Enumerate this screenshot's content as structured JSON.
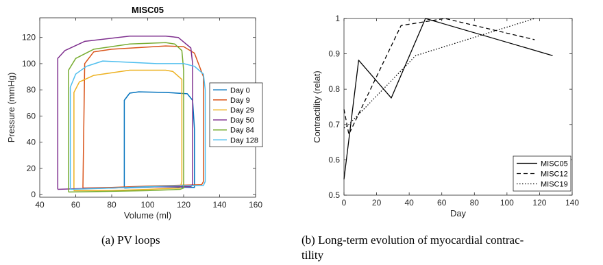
{
  "captions": {
    "a": "(a) PV loops",
    "b": "(b) Long-term evolution of myocardial contrac-",
    "b2": "tility"
  },
  "chart_data": [
    {
      "type": "line",
      "title": "MISC05",
      "xlabel": "Volume (ml)",
      "ylabel": "Pressure (mmHg)",
      "xlim": [
        40,
        160
      ],
      "ylim": [
        -2,
        135
      ],
      "xticks": [
        40,
        60,
        80,
        100,
        120,
        140,
        160
      ],
      "yticks": [
        0,
        20,
        40,
        60,
        80,
        100,
        120
      ],
      "legend_position": "right",
      "series": [
        {
          "name": "Day 0",
          "color": "#0072BD",
          "points": [
            [
              87,
              5
            ],
            [
              87,
              72
            ],
            [
              90,
              77.5
            ],
            [
              95,
              78.5
            ],
            [
              110,
              78
            ],
            [
              122,
              77
            ],
            [
              125,
              72
            ],
            [
              126,
              50
            ],
            [
              126,
              10
            ],
            [
              126,
              5.5
            ],
            [
              105,
              6
            ],
            [
              87,
              5
            ]
          ]
        },
        {
          "name": "Day 9",
          "color": "#D95319",
          "points": [
            [
              64,
              5
            ],
            [
              65,
              100
            ],
            [
              70,
              109
            ],
            [
              80,
              111
            ],
            [
              110,
              113.5
            ],
            [
              120,
              113
            ],
            [
              126,
              108
            ],
            [
              131,
              90
            ],
            [
              131,
              10
            ],
            [
              130,
              7.5
            ],
            [
              100,
              6.5
            ],
            [
              80,
              5.5
            ],
            [
              64,
              5
            ]
          ]
        },
        {
          "name": "Day 29",
          "color": "#EDB120",
          "points": [
            [
              59,
              3
            ],
            [
              59,
              78
            ],
            [
              62,
              86
            ],
            [
              70,
              91
            ],
            [
              90,
              95
            ],
            [
              110,
              95
            ],
            [
              114,
              94
            ],
            [
              119,
              88
            ],
            [
              119,
              10
            ],
            [
              118,
              5
            ],
            [
              100,
              4
            ],
            [
              80,
              3
            ],
            [
              59,
              3
            ]
          ]
        },
        {
          "name": "Day 50",
          "color": "#7E2F8E",
          "points": [
            [
              50,
              4
            ],
            [
              50,
              104
            ],
            [
              54,
              110
            ],
            [
              65,
              117
            ],
            [
              90,
              121
            ],
            [
              110,
              121
            ],
            [
              117,
              120
            ],
            [
              124,
              112
            ],
            [
              125,
              100
            ],
            [
              125,
              8
            ],
            [
              124,
              6
            ],
            [
              100,
              6
            ],
            [
              80,
              5
            ],
            [
              60,
              4.5
            ],
            [
              50,
              4
            ]
          ]
        },
        {
          "name": "Day 84",
          "color": "#77AC30",
          "points": [
            [
              56,
              2
            ],
            [
              56,
              95
            ],
            [
              60,
              104
            ],
            [
              70,
              111
            ],
            [
              90,
              115
            ],
            [
              110,
              116
            ],
            [
              115,
              115
            ],
            [
              119,
              110
            ],
            [
              120,
              95
            ],
            [
              120,
              5
            ],
            [
              118,
              4
            ],
            [
              100,
              3
            ],
            [
              80,
              2.5
            ],
            [
              56,
              2
            ]
          ]
        },
        {
          "name": "Day 128",
          "color": "#4DBEEE",
          "points": [
            [
              57,
              4
            ],
            [
              57,
              82
            ],
            [
              60,
              92
            ],
            [
              66,
              98
            ],
            [
              75,
              102
            ],
            [
              90,
              101
            ],
            [
              105,
              100
            ],
            [
              120,
              100
            ],
            [
              126,
              98
            ],
            [
              131,
              92
            ],
            [
              132,
              80
            ],
            [
              132,
              10
            ],
            [
              131,
              7
            ],
            [
              110,
              6.5
            ],
            [
              80,
              5
            ],
            [
              57,
              4
            ]
          ]
        }
      ]
    },
    {
      "type": "line",
      "title": "",
      "xlabel": "Day",
      "ylabel": "Contractility (relat)",
      "xlim": [
        0,
        140
      ],
      "ylim": [
        0.5,
        1.0
      ],
      "xticks": [
        0,
        20,
        40,
        60,
        80,
        100,
        120,
        140
      ],
      "yticks": [
        0.5,
        0.6,
        0.7,
        0.8,
        0.9,
        1
      ],
      "yticklabels": [
        "0.5",
        "0.6",
        "0.7",
        "0.8",
        "0.9",
        "1"
      ],
      "legend_position": "bottom-right",
      "series": [
        {
          "name": "MISC05",
          "style": "solid",
          "points": [
            [
              0,
              0.545
            ],
            [
              9,
              0.882
            ],
            [
              29,
              0.775
            ],
            [
              50,
              1.0
            ],
            [
              128,
              0.895
            ]
          ]
        },
        {
          "name": "MISC12",
          "style": "dashed",
          "points": [
            [
              0,
              0.743
            ],
            [
              3,
              0.672
            ],
            [
              35,
              0.98
            ],
            [
              62,
              1.0
            ],
            [
              117,
              0.94
            ]
          ]
        },
        {
          "name": "MISC19",
          "style": "dotted",
          "points": [
            [
              0,
              0.69
            ],
            [
              3,
              0.7
            ],
            [
              44,
              0.895
            ],
            [
              117,
              1.0
            ]
          ]
        }
      ]
    }
  ]
}
